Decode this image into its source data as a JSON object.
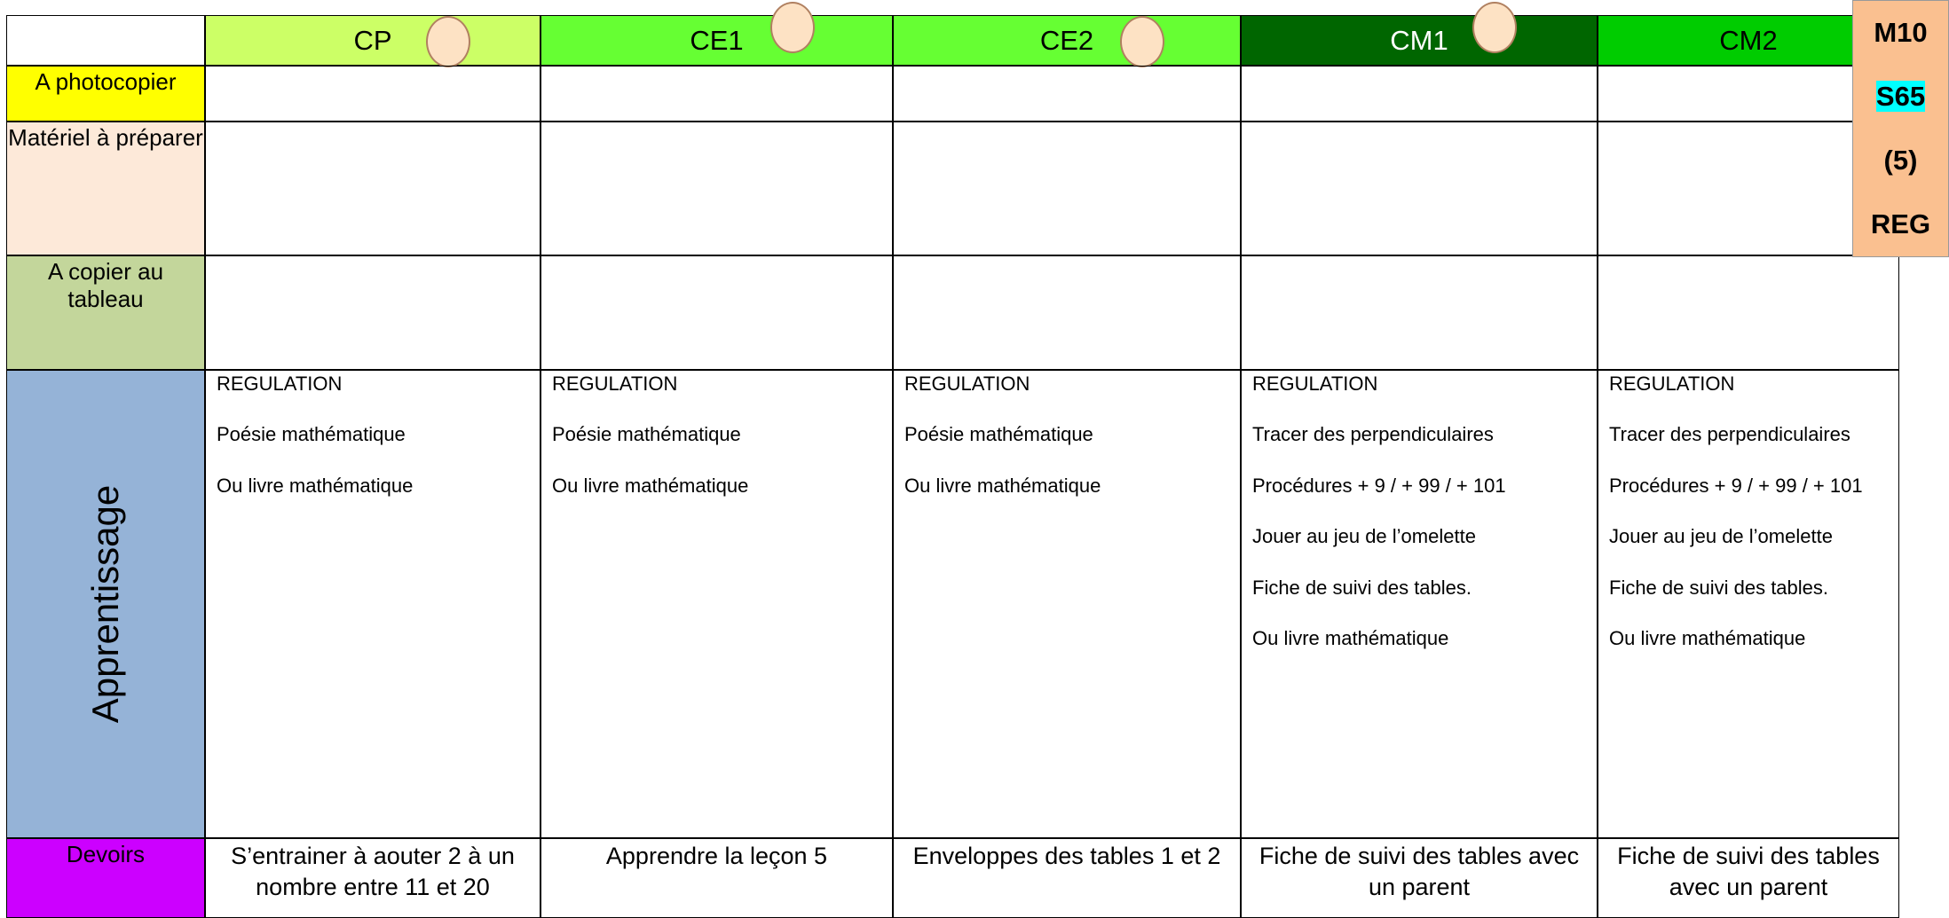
{
  "side": {
    "lines": [
      "M10",
      "S65",
      "(5)",
      "REG"
    ]
  },
  "columns": [
    "CP",
    "CE1",
    "CE2",
    "CM1",
    "CM2"
  ],
  "rows": [
    {
      "label": "A  photocopier"
    },
    {
      "label": "Matériel à préparer"
    },
    {
      "label": "A copier au tableau"
    },
    {
      "label": "Apprentissage",
      "cells": [
        [
          "REGULATION",
          "Poésie mathématique",
          "Ou livre mathématique"
        ],
        [
          "REGULATION",
          "Poésie mathématique",
          "Ou livre mathématique"
        ],
        [
          "REGULATION",
          "Poésie mathématique",
          "Ou livre mathématique"
        ],
        [
          "REGULATION",
          "Tracer des perpendiculaires",
          "Procédures  + 9 / + 99 / + 101",
          "Jouer au jeu de l’omelette",
          "Fiche de suivi des tables.",
          "Ou livre mathématique"
        ],
        [
          "REGULATION",
          "Tracer des perpendiculaires",
          "Procédures  + 9 / + 99 / + 101",
          "Jouer au jeu de l’omelette",
          "Fiche de suivi des tables.",
          "Ou livre mathématique"
        ]
      ]
    },
    {
      "label": "Devoirs",
      "cells": [
        "S’entrainer à aouter 2 à un nombre entre 11 et 20",
        "Apprendre la leçon 5",
        "Enveloppes des tables 1 et 2",
        "Fiche de suivi des tables avec un parent",
        "Fiche de suivi des tables avec un parent"
      ]
    }
  ]
}
